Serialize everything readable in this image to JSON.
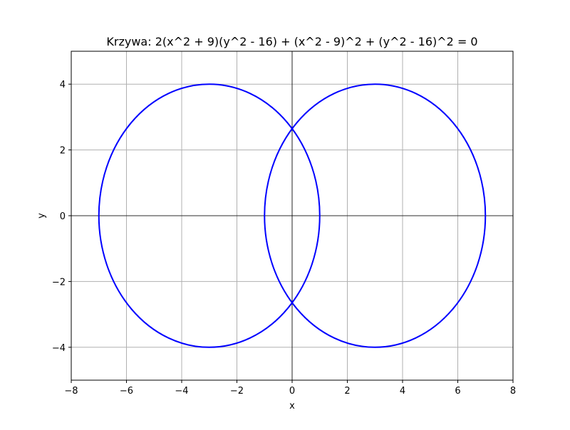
{
  "chart_data": {
    "type": "line",
    "title": "Krzywa: 2(x^2 + 9)(y^2 - 16) + (x^2 - 9)^2 + (y^2 - 16)^2 = 0",
    "xlabel": "x",
    "ylabel": "y",
    "xlim": [
      -8,
      8
    ],
    "ylim": [
      -5,
      5
    ],
    "xticks": [
      -8,
      -6,
      -4,
      -2,
      0,
      2,
      4,
      6,
      8
    ],
    "yticks": [
      -4,
      -2,
      0,
      2,
      4
    ],
    "xtick_labels": [
      "−8",
      "−6",
      "−4",
      "−2",
      "0",
      "2",
      "4",
      "6",
      "8"
    ],
    "ytick_labels": [
      "−4",
      "−2",
      "0",
      "2",
      "4"
    ],
    "grid": true,
    "axis_lines_at_zero": true,
    "series": [
      {
        "color": "#0000ff",
        "shape": "ellipse",
        "center": [
          -3,
          0
        ],
        "semi_axes": [
          4,
          4
        ]
      },
      {
        "color": "#0000ff",
        "shape": "ellipse",
        "center": [
          3,
          0
        ],
        "semi_axes": [
          4,
          4
        ]
      }
    ]
  }
}
